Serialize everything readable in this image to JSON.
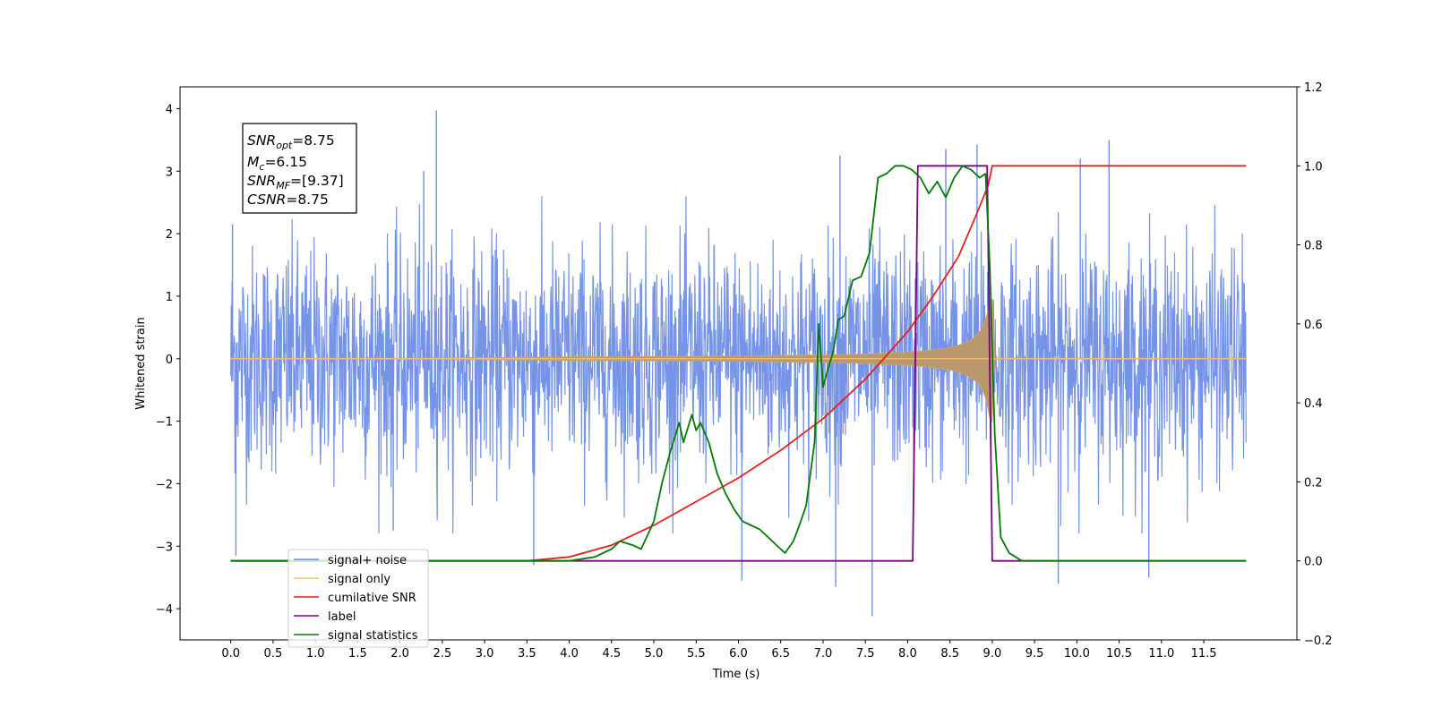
{
  "chart_data": {
    "type": "line",
    "xlabel": "Time (s)",
    "ylabel_left": "Whitened strain",
    "ylabel_right": "",
    "xlim": [
      -0.6,
      12.6
    ],
    "ylim_left": [
      -4.5,
      4.35
    ],
    "ylim_right": [
      -0.2,
      1.2
    ],
    "x_ticks": [
      "0.0",
      "0.5",
      "1.0",
      "1.5",
      "2.0",
      "2.5",
      "3.0",
      "3.5",
      "4.0",
      "4.5",
      "5.0",
      "5.5",
      "6.0",
      "6.5",
      "7.0",
      "7.5",
      "8.0",
      "8.5",
      "9.0",
      "9.5",
      "10.0",
      "10.5",
      "11.0",
      "11.5"
    ],
    "y_ticks_left": [
      "4",
      "3",
      "2",
      "1",
      "0",
      "−1",
      "−2",
      "−3",
      "−4"
    ],
    "y_ticks_right": [
      "1.2",
      "1.0",
      "0.8",
      "0.6",
      "0.4",
      "0.2",
      "0.0",
      "−0.2"
    ],
    "grid": false,
    "legend_position": "lower-left",
    "annotation_box": {
      "snr_opt": {
        "sym": "SNR",
        "sub": "opt",
        "value": "=8.75"
      },
      "mc": {
        "sym": "M",
        "sub": "c",
        "value": "=6.15"
      },
      "snr_mf": {
        "sym": "SNR",
        "sub": "MF",
        "value": "=[9.37]"
      },
      "csnr": {
        "sym": "CSNR",
        "sub": "",
        "value": "=8.75"
      }
    },
    "noise_spikes": [
      {
        "x": 0.02,
        "y": 2.15
      },
      {
        "x": 0.06,
        "y": -3.15
      },
      {
        "x": 2.28,
        "y": 3.0
      },
      {
        "x": 2.43,
        "y": 3.97
      },
      {
        "x": 1.92,
        "y": -2.75
      },
      {
        "x": 3.58,
        "y": -3.3
      },
      {
        "x": 6.04,
        "y": -3.55
      },
      {
        "x": 7.15,
        "y": -3.65
      },
      {
        "x": 7.58,
        "y": -4.12
      },
      {
        "x": 7.2,
        "y": 3.25
      },
      {
        "x": 8.45,
        "y": 3.35
      },
      {
        "x": 8.82,
        "y": 3.42
      },
      {
        "x": 9.78,
        "y": -3.6
      },
      {
        "x": 10.38,
        "y": 3.5
      },
      {
        "x": 10.85,
        "y": -3.5
      },
      {
        "x": 10.04,
        "y": 3.2
      }
    ],
    "series": [
      {
        "name": "signal+ noise",
        "color": "#6f8ee6",
        "axis": "left",
        "x_range": [
          0.0,
          12.0
        ],
        "noise_amplitude": 1.05
      },
      {
        "name": "signal only",
        "color": "#f5c26b",
        "axis": "left",
        "x_range": [
          0.0,
          12.0
        ],
        "chirp_peak_time": 9.0,
        "chirp_peak_amplitude": 0.95
      },
      {
        "name": "cumilative SNR",
        "color": "#e8201b",
        "axis": "right",
        "x": [
          3.5,
          4.0,
          4.5,
          5.0,
          5.5,
          6.0,
          6.5,
          7.0,
          7.5,
          8.0,
          8.3,
          8.6,
          8.8,
          8.95,
          9.0,
          12.0
        ],
        "y": [
          0.0,
          0.01,
          0.04,
          0.09,
          0.15,
          0.21,
          0.28,
          0.36,
          0.46,
          0.58,
          0.67,
          0.77,
          0.87,
          0.95,
          1.0,
          1.0
        ]
      },
      {
        "name": "label",
        "color": "#800080",
        "axis": "right",
        "x": [
          0.0,
          8.06,
          8.12,
          8.94,
          9.0,
          12.0
        ],
        "y": [
          0.0,
          0.0,
          1.0,
          1.0,
          0.0,
          0.0
        ]
      },
      {
        "name": "signal statistics",
        "color": "#007d00",
        "axis": "right",
        "x": [
          0.0,
          3.0,
          4.0,
          4.3,
          4.5,
          4.6,
          4.75,
          4.85,
          5.0,
          5.1,
          5.2,
          5.3,
          5.35,
          5.45,
          5.5,
          5.55,
          5.65,
          5.75,
          5.85,
          5.95,
          6.05,
          6.15,
          6.25,
          6.35,
          6.45,
          6.55,
          6.65,
          6.72,
          6.8,
          6.9,
          6.95,
          7.0,
          7.05,
          7.12,
          7.18,
          7.25,
          7.35,
          7.45,
          7.55,
          7.65,
          7.75,
          7.85,
          7.95,
          8.05,
          8.15,
          8.25,
          8.35,
          8.45,
          8.55,
          8.65,
          8.75,
          8.85,
          8.92,
          8.97,
          9.03,
          9.1,
          9.2,
          9.35,
          9.5,
          12.0
        ],
        "y": [
          0.0,
          0.0,
          0.0,
          0.01,
          0.03,
          0.05,
          0.04,
          0.03,
          0.1,
          0.2,
          0.28,
          0.35,
          0.3,
          0.37,
          0.33,
          0.35,
          0.3,
          0.22,
          0.17,
          0.13,
          0.1,
          0.09,
          0.08,
          0.06,
          0.04,
          0.02,
          0.05,
          0.09,
          0.14,
          0.3,
          0.6,
          0.44,
          0.48,
          0.53,
          0.61,
          0.62,
          0.71,
          0.72,
          0.78,
          0.97,
          0.98,
          1.0,
          1.0,
          0.99,
          0.97,
          0.93,
          0.96,
          0.92,
          0.97,
          1.0,
          0.99,
          0.97,
          0.98,
          0.75,
          0.32,
          0.06,
          0.02,
          0.0,
          0.0,
          0.0
        ]
      }
    ]
  },
  "legend": {
    "items": [
      {
        "label": "signal+ noise",
        "color": "#6f8ee6"
      },
      {
        "label": "signal only",
        "color": "#f5c26b"
      },
      {
        "label": "cumilative SNR",
        "color": "#e8201b"
      },
      {
        "label": "label",
        "color": "#800080"
      },
      {
        "label": "signal statistics",
        "color": "#007d00"
      }
    ]
  }
}
